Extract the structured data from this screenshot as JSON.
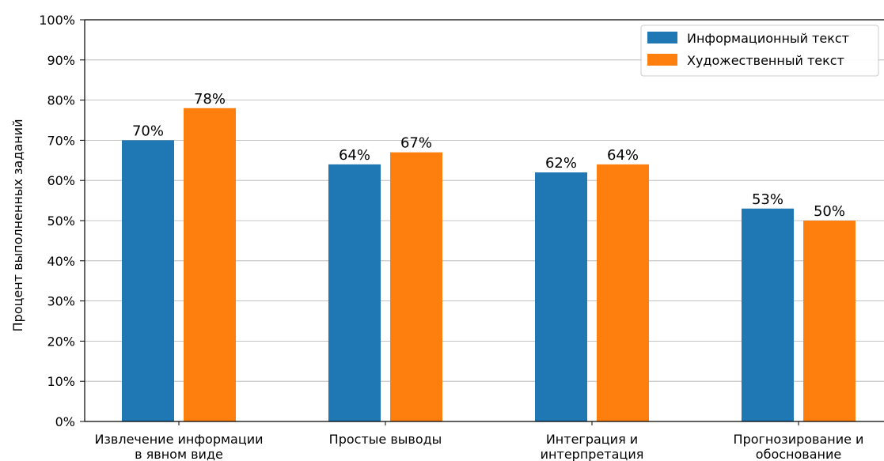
{
  "chart_data": {
    "type": "bar",
    "title": "",
    "xlabel": "",
    "ylabel": "Процент выполненных заданий",
    "ylim": [
      0,
      100
    ],
    "yticks": [
      "0%",
      "10%",
      "20%",
      "30%",
      "40%",
      "50%",
      "60%",
      "70%",
      "80%",
      "90%",
      "100%"
    ],
    "categories": [
      [
        "Извлечение информации",
        "в явном виде"
      ],
      [
        "Простые выводы"
      ],
      [
        "Интеграция и",
        "интерпретация"
      ],
      [
        "Прогнозирование и",
        "обоснование"
      ]
    ],
    "series": [
      {
        "name": "Информационный текст",
        "color": "#1f77b4",
        "values": [
          70,
          64,
          62,
          53
        ],
        "labels": [
          "70%",
          "64%",
          "62%",
          "53%"
        ]
      },
      {
        "name": "Художественный текст",
        "color": "#ff7f0e",
        "values": [
          78,
          67,
          64,
          50
        ],
        "labels": [
          "78%",
          "67%",
          "64%",
          "50%"
        ]
      }
    ],
    "grid": "y",
    "legend_position": "top-right"
  }
}
